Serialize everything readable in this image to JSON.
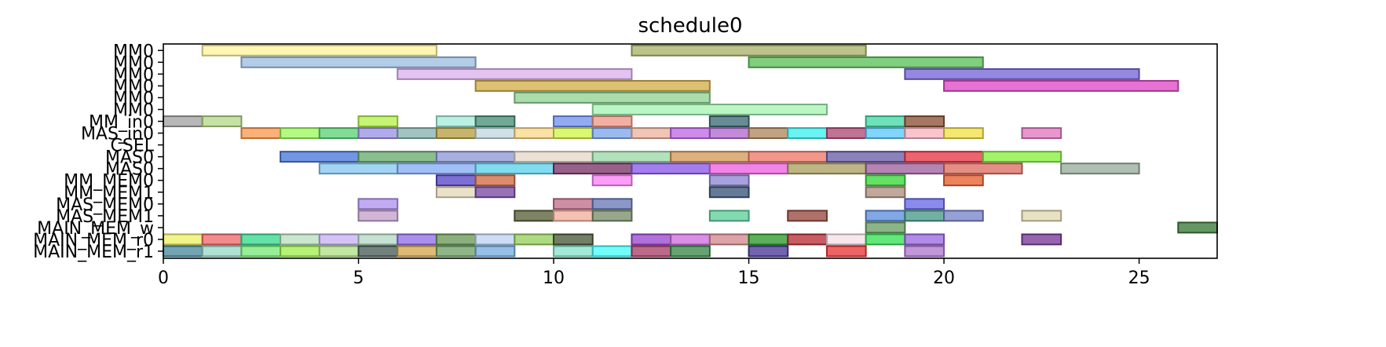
{
  "chart_data": {
    "type": "gantt",
    "title": "schedule0",
    "xlabel": "",
    "ylabel": "",
    "xlim": [
      0,
      27
    ],
    "x_ticks": [
      0,
      5,
      10,
      15,
      20,
      25
    ],
    "grid": false,
    "rows": [
      "MM0",
      "MM0",
      "MM0",
      "MM0",
      "MM0",
      "MM0",
      "MM_in0",
      "MAS_in0",
      "CSEL",
      "MAS0",
      "MAS0",
      "MM_MEM0",
      "MM_MEM1",
      "MAS_MEM0",
      "MAS_MEM1",
      "MAIN_MEM_w",
      "MAIN_MEM_r0",
      "MAIN_MEM_r1"
    ],
    "bars": [
      {
        "row": 0,
        "start": 1,
        "end": 7,
        "color": "#fff59d"
      },
      {
        "row": 0,
        "start": 12,
        "end": 18,
        "color": "#a9b46a"
      },
      {
        "row": 1,
        "start": 2,
        "end": 8,
        "color": "#9ebfe3"
      },
      {
        "row": 1,
        "start": 15,
        "end": 21,
        "color": "#5ec05a"
      },
      {
        "row": 2,
        "start": 6,
        "end": 12,
        "color": "#dcb2f0"
      },
      {
        "row": 2,
        "start": 19,
        "end": 25,
        "color": "#7766d8"
      },
      {
        "row": 3,
        "start": 8,
        "end": 14,
        "color": "#d4b04a"
      },
      {
        "row": 3,
        "start": 20,
        "end": 26,
        "color": "#e04ac8"
      },
      {
        "row": 4,
        "start": 9,
        "end": 14,
        "color": "#92d494"
      },
      {
        "row": 5,
        "start": 11,
        "end": 17,
        "color": "#a6f5b4"
      },
      {
        "row": 6,
        "start": 0,
        "end": 1,
        "color": "#a3a3a3"
      },
      {
        "row": 6,
        "start": 1,
        "end": 2,
        "color": "#b5d889"
      },
      {
        "row": 6,
        "start": 5,
        "end": 6,
        "color": "#b6f24e"
      },
      {
        "row": 6,
        "start": 7,
        "end": 8,
        "color": "#a8ecdc"
      },
      {
        "row": 6,
        "start": 8,
        "end": 9,
        "color": "#4a9078"
      },
      {
        "row": 6,
        "start": 10,
        "end": 11,
        "color": "#7393f0"
      },
      {
        "row": 6,
        "start": 11,
        "end": 12,
        "color": "#ee9a8c"
      },
      {
        "row": 6,
        "start": 14,
        "end": 15,
        "color": "#3d6b78"
      },
      {
        "row": 6,
        "start": 18,
        "end": 19,
        "color": "#45d8a8"
      },
      {
        "row": 6,
        "start": 19,
        "end": 20,
        "color": "#8c5238"
      },
      {
        "row": 7,
        "start": 2,
        "end": 3,
        "color": "#f99a50"
      },
      {
        "row": 7,
        "start": 3,
        "end": 4,
        "color": "#9df85e"
      },
      {
        "row": 7,
        "start": 4,
        "end": 5,
        "color": "#5ed378"
      },
      {
        "row": 7,
        "start": 5,
        "end": 6,
        "color": "#9b92e6"
      },
      {
        "row": 7,
        "start": 6,
        "end": 7,
        "color": "#86b4b0"
      },
      {
        "row": 7,
        "start": 7,
        "end": 8,
        "color": "#b8a044"
      },
      {
        "row": 7,
        "start": 8,
        "end": 9,
        "color": "#c2d8df"
      },
      {
        "row": 7,
        "start": 9,
        "end": 10,
        "color": "#fbd88a"
      },
      {
        "row": 7,
        "start": 10,
        "end": 11,
        "color": "#d4f54a"
      },
      {
        "row": 7,
        "start": 11,
        "end": 12,
        "color": "#7ea8ec"
      },
      {
        "row": 7,
        "start": 12,
        "end": 13,
        "color": "#eeb4a0"
      },
      {
        "row": 7,
        "start": 13,
        "end": 14,
        "color": "#c06ae6"
      },
      {
        "row": 7,
        "start": 14,
        "end": 15,
        "color": "#b06ad0"
      },
      {
        "row": 7,
        "start": 15,
        "end": 16,
        "color": "#b08860"
      },
      {
        "row": 7,
        "start": 16,
        "end": 17,
        "color": "#3ff0f0"
      },
      {
        "row": 7,
        "start": 17,
        "end": 18,
        "color": "#b04c74"
      },
      {
        "row": 7,
        "start": 18,
        "end": 19,
        "color": "#5ec8f8"
      },
      {
        "row": 7,
        "start": 19,
        "end": 20,
        "color": "#f8b4c0"
      },
      {
        "row": 7,
        "start": 20,
        "end": 21,
        "color": "#f2e048"
      },
      {
        "row": 7,
        "start": 22,
        "end": 23,
        "color": "#e07ac0"
      },
      {
        "row": 9,
        "start": 3,
        "end": 5,
        "color": "#4a78d8"
      },
      {
        "row": 9,
        "start": 5,
        "end": 7,
        "color": "#6aac70"
      },
      {
        "row": 9,
        "start": 7,
        "end": 9,
        "color": "#8e98d6"
      },
      {
        "row": 9,
        "start": 9,
        "end": 11,
        "color": "#e6d8c8"
      },
      {
        "row": 9,
        "start": 11,
        "end": 13,
        "color": "#9cd8a8"
      },
      {
        "row": 9,
        "start": 13,
        "end": 15,
        "color": "#d49a58"
      },
      {
        "row": 9,
        "start": 15,
        "end": 17,
        "color": "#f07a6a"
      },
      {
        "row": 9,
        "start": 17,
        "end": 19,
        "color": "#6a5ea8"
      },
      {
        "row": 9,
        "start": 19,
        "end": 21,
        "color": "#e83848"
      },
      {
        "row": 9,
        "start": 21,
        "end": 23,
        "color": "#88f040"
      },
      {
        "row": 10,
        "start": 4,
        "end": 6,
        "color": "#88c8f0"
      },
      {
        "row": 10,
        "start": 6,
        "end": 8,
        "color": "#84aef5"
      },
      {
        "row": 10,
        "start": 8,
        "end": 10,
        "color": "#5ed2ec"
      },
      {
        "row": 10,
        "start": 10,
        "end": 12,
        "color": "#7a3468"
      },
      {
        "row": 10,
        "start": 12,
        "end": 14,
        "color": "#8a5ae8"
      },
      {
        "row": 10,
        "start": 14,
        "end": 16,
        "color": "#ee60e0"
      },
      {
        "row": 10,
        "start": 16,
        "end": 18,
        "color": "#aaa060"
      },
      {
        "row": 10,
        "start": 18,
        "end": 20,
        "color": "#a0629e"
      },
      {
        "row": 10,
        "start": 20,
        "end": 22,
        "color": "#dc6e64"
      },
      {
        "row": 10,
        "start": 23,
        "end": 25,
        "color": "#98ae9e"
      },
      {
        "row": 11,
        "start": 7,
        "end": 8,
        "color": "#5a46c8"
      },
      {
        "row": 11,
        "start": 8,
        "end": 9,
        "color": "#d06c44"
      },
      {
        "row": 11,
        "start": 11,
        "end": 12,
        "color": "#fb82f8"
      },
      {
        "row": 11,
        "start": 14,
        "end": 15,
        "color": "#8e88d4"
      },
      {
        "row": 11,
        "start": 18,
        "end": 19,
        "color": "#38d838"
      },
      {
        "row": 11,
        "start": 20,
        "end": 21,
        "color": "#e86030"
      },
      {
        "row": 12,
        "start": 7,
        "end": 8,
        "color": "#e4dab8"
      },
      {
        "row": 12,
        "start": 8,
        "end": 9,
        "color": "#7a4aa4"
      },
      {
        "row": 12,
        "start": 14,
        "end": 15,
        "color": "#3a5478"
      },
      {
        "row": 12,
        "start": 18,
        "end": 19,
        "color": "#b09080"
      },
      {
        "row": 13,
        "start": 5,
        "end": 6,
        "color": "#b294f0"
      },
      {
        "row": 13,
        "start": 10,
        "end": 11,
        "color": "#c0708c"
      },
      {
        "row": 13,
        "start": 11,
        "end": 12,
        "color": "#6a7ab8"
      },
      {
        "row": 13,
        "start": 19,
        "end": 20,
        "color": "#6a6ae8"
      },
      {
        "row": 14,
        "start": 5,
        "end": 6,
        "color": "#c4a2cc"
      },
      {
        "row": 14,
        "start": 9,
        "end": 10,
        "color": "#5a6038"
      },
      {
        "row": 14,
        "start": 10,
        "end": 11,
        "color": "#f4b0a0"
      },
      {
        "row": 14,
        "start": 11,
        "end": 12,
        "color": "#7a8e6a"
      },
      {
        "row": 14,
        "start": 14,
        "end": 15,
        "color": "#5ed09a"
      },
      {
        "row": 14,
        "start": 16,
        "end": 17,
        "color": "#984a40"
      },
      {
        "row": 14,
        "start": 18,
        "end": 19,
        "color": "#5e8ede"
      },
      {
        "row": 14,
        "start": 19,
        "end": 20,
        "color": "#4a9a8a"
      },
      {
        "row": 14,
        "start": 20,
        "end": 21,
        "color": "#7a84cc"
      },
      {
        "row": 14,
        "start": 22,
        "end": 23,
        "color": "#e0dab0"
      },
      {
        "row": 15,
        "start": 18,
        "end": 19,
        "color": "#6aa068"
      },
      {
        "row": 15,
        "start": 26,
        "end": 27,
        "color": "#3a7a38"
      },
      {
        "row": 16,
        "start": 0,
        "end": 1,
        "color": "#eef06a"
      },
      {
        "row": 16,
        "start": 1,
        "end": 2,
        "color": "#ee6a6a"
      },
      {
        "row": 16,
        "start": 2,
        "end": 3,
        "color": "#3ad890"
      },
      {
        "row": 16,
        "start": 3,
        "end": 4,
        "color": "#b8e0c0"
      },
      {
        "row": 16,
        "start": 4,
        "end": 5,
        "color": "#c8b4f4"
      },
      {
        "row": 16,
        "start": 5,
        "end": 6,
        "color": "#b4d8c4"
      },
      {
        "row": 16,
        "start": 6,
        "end": 7,
        "color": "#9270e8"
      },
      {
        "row": 16,
        "start": 7,
        "end": 8,
        "color": "#6a9a5a"
      },
      {
        "row": 16,
        "start": 8,
        "end": 9,
        "color": "#c0d4f4"
      },
      {
        "row": 16,
        "start": 9,
        "end": 10,
        "color": "#98d060"
      },
      {
        "row": 16,
        "start": 10,
        "end": 11,
        "color": "#4a5a3a"
      },
      {
        "row": 16,
        "start": 12,
        "end": 13,
        "color": "#9a4ad0"
      },
      {
        "row": 16,
        "start": 13,
        "end": 14,
        "color": "#d070e0"
      },
      {
        "row": 16,
        "start": 14,
        "end": 15,
        "color": "#d48a8e"
      },
      {
        "row": 16,
        "start": 15,
        "end": 16,
        "color": "#2e9a2e"
      },
      {
        "row": 16,
        "start": 16,
        "end": 17,
        "color": "#b82e38"
      },
      {
        "row": 16,
        "start": 17,
        "end": 18,
        "color": "#f4e0e8"
      },
      {
        "row": 16,
        "start": 18,
        "end": 19,
        "color": "#38e054"
      },
      {
        "row": 16,
        "start": 19,
        "end": 20,
        "color": "#9a6ae0"
      },
      {
        "row": 16,
        "start": 22,
        "end": 23,
        "color": "#7a3a9a"
      },
      {
        "row": 17,
        "start": 0,
        "end": 1,
        "color": "#4a8a9e"
      },
      {
        "row": 17,
        "start": 1,
        "end": 2,
        "color": "#9ad8c8"
      },
      {
        "row": 17,
        "start": 2,
        "end": 3,
        "color": "#78ea78"
      },
      {
        "row": 17,
        "start": 3,
        "end": 4,
        "color": "#a0ee50"
      },
      {
        "row": 17,
        "start": 4,
        "end": 5,
        "color": "#b0e088"
      },
      {
        "row": 17,
        "start": 5,
        "end": 6,
        "color": "#4a5e58"
      },
      {
        "row": 17,
        "start": 6,
        "end": 7,
        "color": "#d4a850"
      },
      {
        "row": 17,
        "start": 7,
        "end": 8,
        "color": "#70a068"
      },
      {
        "row": 17,
        "start": 8,
        "end": 9,
        "color": "#78aee0"
      },
      {
        "row": 17,
        "start": 10,
        "end": 11,
        "color": "#88e4cc"
      },
      {
        "row": 17,
        "start": 11,
        "end": 12,
        "color": "#4afcfc"
      },
      {
        "row": 17,
        "start": 12,
        "end": 13,
        "color": "#a84068"
      },
      {
        "row": 17,
        "start": 13,
        "end": 14,
        "color": "#3a8a4a"
      },
      {
        "row": 17,
        "start": 15,
        "end": 16,
        "color": "#4a3898"
      },
      {
        "row": 17,
        "start": 17,
        "end": 18,
        "color": "#e83838"
      },
      {
        "row": 17,
        "start": 19,
        "end": 20,
        "color": "#b07ad0"
      }
    ]
  }
}
